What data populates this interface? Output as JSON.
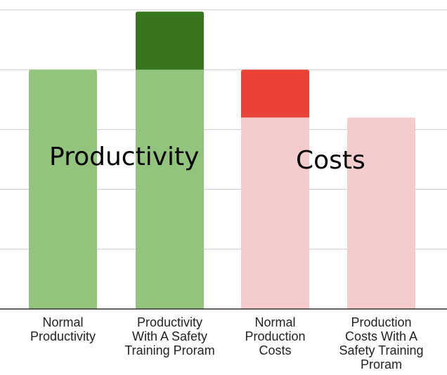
{
  "chart_data": {
    "type": "bar",
    "stacked": true,
    "categories": [
      "Normal\nProductivity",
      "Productivity\nWith A Safety\nTraining Proram",
      "Normal\nProduction\nCosts",
      "Production\nCosts With A\nSafety Training\nProram"
    ],
    "series": [
      {
        "values": [
          4,
          4,
          3.2,
          3.2
        ],
        "colors": [
          "#93c47d",
          "#93c47d",
          "#f4cccc",
          "#f4cccc"
        ]
      },
      {
        "values": [
          0,
          0.97,
          0.8,
          0
        ],
        "colors": [
          "#38761d",
          "#38761d",
          "#ea4335",
          "#ea4335"
        ]
      }
    ],
    "ylim": [
      0,
      5
    ],
    "grid": true,
    "title": "",
    "xlabel": "",
    "ylabel": "",
    "annotations": [
      {
        "text": "Productivity",
        "near_category": 0
      },
      {
        "text": "Costs",
        "near_category": 2
      }
    ]
  }
}
